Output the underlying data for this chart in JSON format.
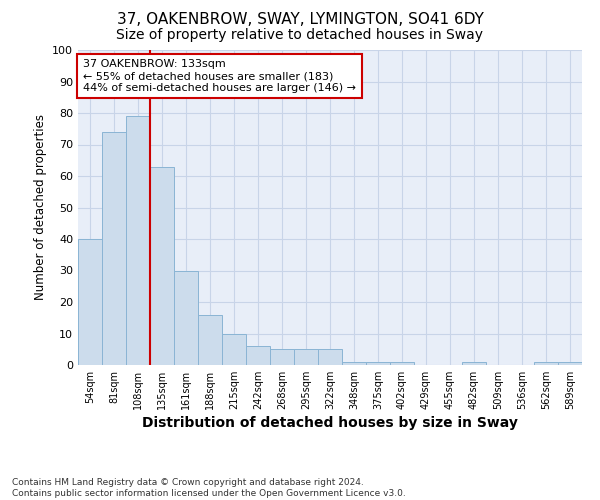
{
  "title1": "37, OAKENBROW, SWAY, LYMINGTON, SO41 6DY",
  "title2": "Size of property relative to detached houses in Sway",
  "xlabel": "Distribution of detached houses by size in Sway",
  "ylabel": "Number of detached properties",
  "footnote": "Contains HM Land Registry data © Crown copyright and database right 2024.\nContains public sector information licensed under the Open Government Licence v3.0.",
  "categories": [
    "54sqm",
    "81sqm",
    "108sqm",
    "135sqm",
    "161sqm",
    "188sqm",
    "215sqm",
    "242sqm",
    "268sqm",
    "295sqm",
    "322sqm",
    "348sqm",
    "375sqm",
    "402sqm",
    "429sqm",
    "455sqm",
    "482sqm",
    "509sqm",
    "536sqm",
    "562sqm",
    "589sqm"
  ],
  "values": [
    40,
    74,
    79,
    63,
    30,
    16,
    10,
    6,
    5,
    5,
    5,
    1,
    1,
    1,
    0,
    0,
    1,
    0,
    0,
    1,
    1
  ],
  "bar_color": "#ccdcec",
  "bar_edge_color": "#8ab4d4",
  "vline_color": "#cc0000",
  "annotation_text": "37 OAKENBROW: 133sqm\n← 55% of detached houses are smaller (183)\n44% of semi-detached houses are larger (146) →",
  "annotation_box_color": "#ffffff",
  "annotation_box_edge": "#cc0000",
  "ylim": [
    0,
    100
  ],
  "yticks": [
    0,
    10,
    20,
    30,
    40,
    50,
    60,
    70,
    80,
    90,
    100
  ],
  "grid_color": "#c8d4e8",
  "background_color": "#e8eef8",
  "title1_fontsize": 11,
  "title2_fontsize": 10,
  "xlabel_fontsize": 10,
  "ylabel_fontsize": 8.5,
  "footnote_fontsize": 6.5
}
